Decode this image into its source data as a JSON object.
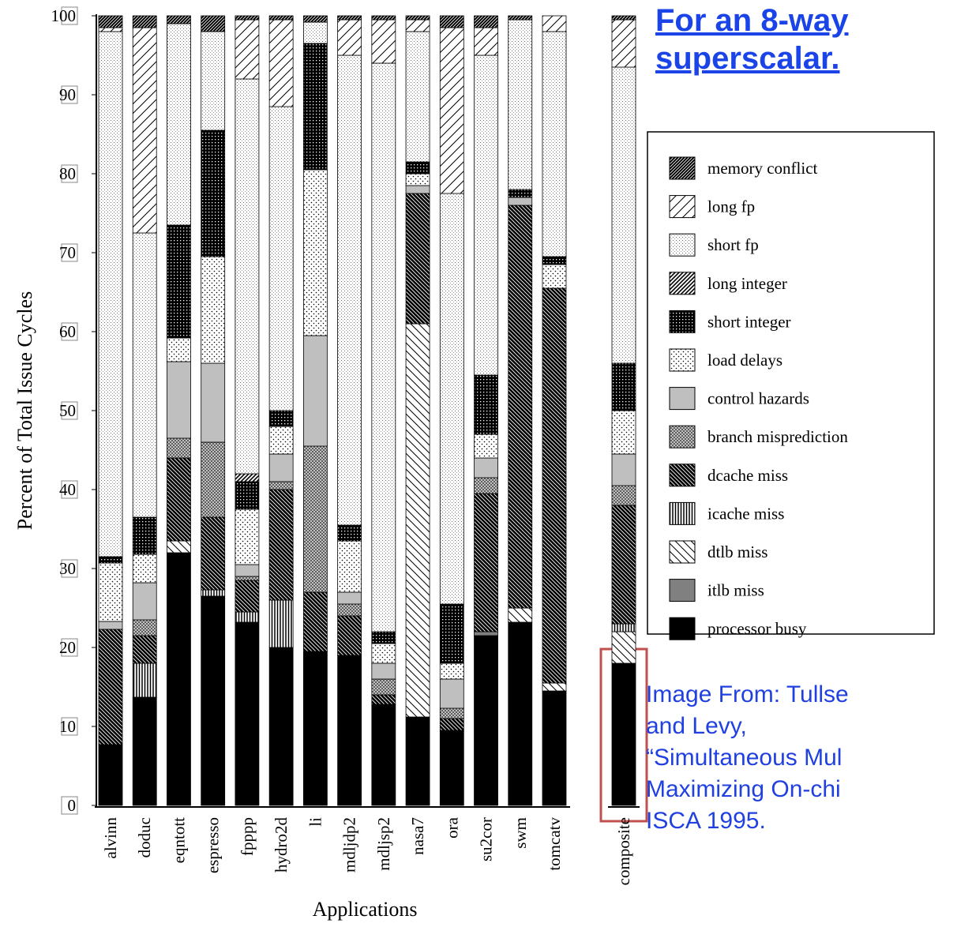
{
  "chart_data": {
    "type": "stacked_bar",
    "title": "For an 8-way superscalar.",
    "annotations": [
      "Image From: Tullse",
      "and Levy,",
      "“Simultaneous Mul",
      "Maximizing On-chi",
      "ISCA 1995."
    ],
    "ylabel": "Percent of Total Issue Cycles",
    "xlabel": "Applications",
    "ylim": [
      0,
      100
    ],
    "yticks": [
      0,
      10,
      20,
      30,
      40,
      50,
      60,
      70,
      80,
      90,
      100
    ],
    "categories": [
      "alvinn",
      "doduc",
      "eqntott",
      "espresso",
      "fpppp",
      "hydro2d",
      "li",
      "mdljdp2",
      "mdljsp2",
      "nasa7",
      "ora",
      "su2cor",
      "swm",
      "tomcatv",
      "composite"
    ],
    "series": [
      {
        "name": "processor busy",
        "values": [
          7.7,
          13.7,
          32,
          26.5,
          23.2,
          20,
          19.5,
          19,
          12.8,
          11.2,
          9.5,
          21.5,
          23.2,
          14.5,
          18
        ]
      },
      {
        "name": "itlb miss",
        "values": [
          0,
          0,
          0,
          0,
          0,
          0,
          0,
          0,
          0,
          0,
          0,
          0.5,
          0,
          0,
          0
        ]
      },
      {
        "name": "dtlb miss",
        "values": [
          0,
          0,
          1.5,
          0,
          0,
          0,
          0,
          0,
          0,
          49.8,
          0,
          0,
          1.8,
          1,
          4
        ]
      },
      {
        "name": "icache miss",
        "values": [
          0,
          4.3,
          0,
          0.8,
          1.3,
          6,
          0,
          0,
          0,
          0,
          0,
          0,
          0,
          0,
          1
        ]
      },
      {
        "name": "dcache miss",
        "values": [
          14.6,
          3.5,
          10.5,
          9.2,
          4,
          14,
          7.5,
          5,
          1.2,
          16.5,
          1.5,
          17.5,
          51,
          50,
          15
        ]
      },
      {
        "name": "branch misprediction",
        "values": [
          0,
          2,
          2.5,
          9.5,
          0.5,
          1,
          18.5,
          1.5,
          2,
          0,
          1.3,
          2,
          0,
          0,
          2.5
        ]
      },
      {
        "name": "control hazards",
        "values": [
          1,
          4.7,
          9.7,
          10,
          1.5,
          3.5,
          14,
          1.5,
          2,
          1,
          3.7,
          2.5,
          1,
          0,
          4
        ]
      },
      {
        "name": "load delays",
        "values": [
          7.4,
          3.6,
          3,
          13.5,
          7,
          3.5,
          21,
          6.5,
          2.5,
          1.5,
          2,
          3,
          0,
          3,
          5.5
        ]
      },
      {
        "name": "short integer",
        "values": [
          0.8,
          4.7,
          14.3,
          16,
          3.5,
          2,
          16,
          2,
          1.5,
          1.5,
          7.5,
          7.5,
          1,
          1,
          6
        ]
      },
      {
        "name": "long integer",
        "values": [
          0,
          0,
          0,
          0,
          1,
          0,
          0,
          0,
          0,
          0,
          0,
          0,
          0,
          0,
          0
        ]
      },
      {
        "name": "short fp",
        "values": [
          66.5,
          36,
          25.5,
          12.5,
          50,
          38.5,
          2.7,
          59.5,
          72,
          16.5,
          52,
          40.5,
          21.5,
          28.5,
          37.5
        ]
      },
      {
        "name": "long fp",
        "values": [
          0.5,
          26,
          0,
          0,
          7.5,
          11,
          0,
          4.5,
          5.5,
          1.5,
          21,
          3.5,
          0,
          2,
          6
        ]
      },
      {
        "name": "memory conflict",
        "values": [
          1.5,
          1.5,
          1,
          2,
          0.5,
          0.5,
          0.8,
          0.5,
          0.5,
          0.5,
          1.5,
          1.5,
          0.5,
          0,
          0.5
        ]
      }
    ]
  }
}
